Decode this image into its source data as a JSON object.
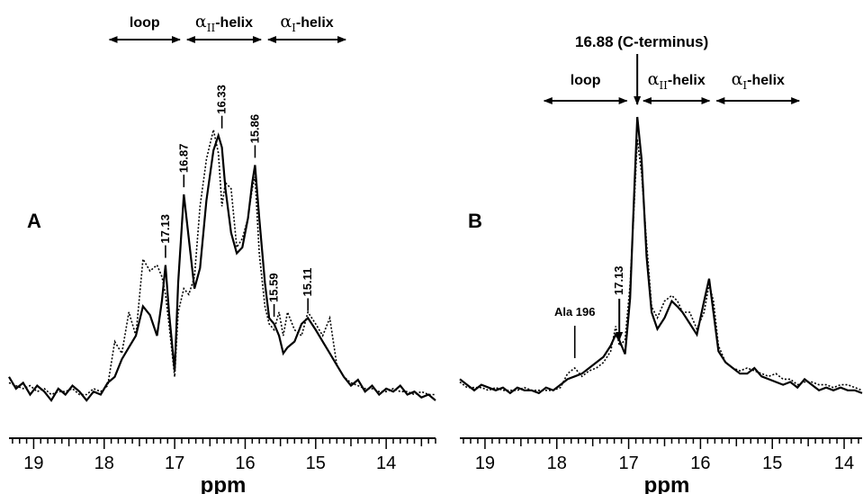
{
  "chart_data": [
    {
      "type": "line",
      "panel_label": "A",
      "xlabel": "ppm",
      "xlim": [
        19.35,
        13.3
      ],
      "x_ticks": [
        "19",
        "18",
        "17",
        "16",
        "15",
        "14"
      ],
      "x_tick_values": [
        19,
        18,
        17,
        16,
        15,
        14
      ],
      "regions": [
        {
          "label": "loop",
          "from": 17.95,
          "to": 16.9
        },
        {
          "label": "αII-helix",
          "greek": "α",
          "sub": "II",
          "suffix": "-helix",
          "from": 16.85,
          "to": 15.75
        },
        {
          "label": "αI-helix",
          "greek": "α",
          "sub": "I",
          "suffix": "-helix",
          "from": 15.7,
          "to": 14.55
        }
      ],
      "peak_labels": [
        "17.13",
        "16.87",
        "16.33",
        "15.86",
        "15.59",
        "15.11"
      ],
      "peak_positions": [
        17.13,
        16.87,
        16.33,
        15.86,
        15.59,
        15.11
      ],
      "series": [
        {
          "style": "solid",
          "x": [
            19.35,
            19.25,
            19.15,
            19.05,
            18.95,
            18.85,
            18.75,
            18.65,
            18.55,
            18.45,
            18.35,
            18.25,
            18.15,
            18.05,
            17.95,
            17.85,
            17.75,
            17.65,
            17.55,
            17.45,
            17.35,
            17.25,
            17.18,
            17.13,
            17.08,
            17.0,
            16.95,
            16.87,
            16.8,
            16.72,
            16.64,
            16.55,
            16.45,
            16.38,
            16.33,
            16.28,
            16.2,
            16.12,
            16.04,
            15.96,
            15.9,
            15.86,
            15.8,
            15.72,
            15.66,
            15.59,
            15.52,
            15.46,
            15.4,
            15.3,
            15.2,
            15.11,
            15.0,
            14.9,
            14.8,
            14.7,
            14.6,
            14.5,
            14.4,
            14.3,
            14.2,
            14.1,
            14.0,
            13.9,
            13.8,
            13.7,
            13.6,
            13.5,
            13.4,
            13.3
          ],
          "y": [
            0.08,
            0.04,
            0.06,
            0.02,
            0.05,
            0.03,
            0.0,
            0.04,
            0.02,
            0.05,
            0.03,
            0.0,
            0.03,
            0.02,
            0.06,
            0.08,
            0.14,
            0.18,
            0.22,
            0.32,
            0.29,
            0.22,
            0.34,
            0.46,
            0.3,
            0.1,
            0.4,
            0.7,
            0.55,
            0.38,
            0.45,
            0.68,
            0.85,
            0.9,
            0.86,
            0.72,
            0.57,
            0.5,
            0.52,
            0.62,
            0.74,
            0.8,
            0.62,
            0.4,
            0.28,
            0.26,
            0.22,
            0.16,
            0.18,
            0.2,
            0.26,
            0.28,
            0.24,
            0.2,
            0.16,
            0.12,
            0.08,
            0.05,
            0.07,
            0.03,
            0.05,
            0.02,
            0.04,
            0.03,
            0.05,
            0.02,
            0.03,
            0.01,
            0.02,
            0.0
          ]
        },
        {
          "style": "dotted",
          "x": [
            19.35,
            19.25,
            19.15,
            19.05,
            18.95,
            18.85,
            18.75,
            18.65,
            18.55,
            18.45,
            18.35,
            18.25,
            18.15,
            18.05,
            17.95,
            17.85,
            17.75,
            17.65,
            17.55,
            17.45,
            17.35,
            17.25,
            17.18,
            17.13,
            17.08,
            17.0,
            16.95,
            16.87,
            16.8,
            16.72,
            16.64,
            16.55,
            16.45,
            16.38,
            16.33,
            16.28,
            16.2,
            16.12,
            16.04,
            15.96,
            15.9,
            15.86,
            15.8,
            15.72,
            15.66,
            15.59,
            15.52,
            15.46,
            15.4,
            15.3,
            15.2,
            15.11,
            15.0,
            14.9,
            14.8,
            14.7,
            14.6,
            14.5,
            14.4,
            14.3,
            14.2,
            14.1,
            14.0,
            13.9,
            13.8,
            13.7,
            13.6,
            13.5,
            13.4,
            13.3
          ],
          "y": [
            0.06,
            0.05,
            0.04,
            0.05,
            0.03,
            0.04,
            0.02,
            0.03,
            0.03,
            0.04,
            0.02,
            0.02,
            0.04,
            0.03,
            0.05,
            0.2,
            0.16,
            0.3,
            0.22,
            0.48,
            0.44,
            0.46,
            0.42,
            0.36,
            0.26,
            0.08,
            0.3,
            0.38,
            0.36,
            0.42,
            0.66,
            0.82,
            0.92,
            0.84,
            0.66,
            0.74,
            0.72,
            0.52,
            0.55,
            0.62,
            0.72,
            0.76,
            0.5,
            0.32,
            0.26,
            0.24,
            0.3,
            0.22,
            0.3,
            0.24,
            0.22,
            0.3,
            0.26,
            0.22,
            0.28,
            0.12,
            0.08,
            0.06,
            0.05,
            0.04,
            0.04,
            0.03,
            0.03,
            0.04,
            0.03,
            0.03,
            0.02,
            0.03,
            0.02,
            0.02
          ]
        }
      ]
    },
    {
      "type": "line",
      "panel_label": "B",
      "xlabel": "ppm",
      "xlim": [
        19.35,
        13.75
      ],
      "x_ticks": [
        "19",
        "18",
        "17",
        "16",
        "15",
        "14"
      ],
      "x_tick_values": [
        19,
        18,
        17,
        16,
        15,
        14
      ],
      "regions": [
        {
          "label": "loop",
          "from": 18.2,
          "to": 17.0
        },
        {
          "label": "αII-helix",
          "greek": "α",
          "sub": "II",
          "suffix": "-helix",
          "from": 16.82,
          "to": 15.85
        },
        {
          "label": "αI-helix",
          "greek": "α",
          "sub": "I",
          "suffix": "-helix",
          "from": 15.8,
          "to": 14.6
        }
      ],
      "annotations": [
        {
          "text": "16.88 (C-terminus)",
          "x": 16.88,
          "kind": "arrow"
        },
        {
          "text": "17.13",
          "x": 17.13,
          "kind": "arrow"
        },
        {
          "text": "Ala 196",
          "x": 17.8,
          "kind": "line"
        }
      ],
      "series": [
        {
          "style": "solid",
          "x": [
            19.35,
            19.25,
            19.15,
            19.05,
            18.95,
            18.85,
            18.75,
            18.65,
            18.55,
            18.45,
            18.35,
            18.25,
            18.15,
            18.05,
            17.95,
            17.85,
            17.75,
            17.65,
            17.55,
            17.45,
            17.35,
            17.25,
            17.18,
            17.13,
            17.05,
            16.98,
            16.92,
            16.88,
            16.82,
            16.75,
            16.68,
            16.6,
            16.5,
            16.4,
            16.32,
            16.25,
            16.15,
            16.05,
            15.95,
            15.88,
            15.82,
            15.75,
            15.65,
            15.55,
            15.45,
            15.35,
            15.25,
            15.15,
            15.05,
            14.95,
            14.85,
            14.75,
            14.65,
            14.55,
            14.45,
            14.35,
            14.25,
            14.15,
            14.05,
            13.95,
            13.85,
            13.75
          ],
          "y": [
            0.06,
            0.04,
            0.02,
            0.04,
            0.03,
            0.02,
            0.03,
            0.01,
            0.03,
            0.02,
            0.02,
            0.01,
            0.03,
            0.02,
            0.04,
            0.06,
            0.07,
            0.08,
            0.1,
            0.12,
            0.14,
            0.18,
            0.22,
            0.2,
            0.15,
            0.35,
            0.75,
            1.0,
            0.85,
            0.5,
            0.3,
            0.24,
            0.28,
            0.34,
            0.32,
            0.3,
            0.26,
            0.22,
            0.34,
            0.42,
            0.3,
            0.16,
            0.12,
            0.1,
            0.08,
            0.08,
            0.1,
            0.07,
            0.06,
            0.05,
            0.04,
            0.05,
            0.03,
            0.06,
            0.04,
            0.02,
            0.03,
            0.02,
            0.03,
            0.02,
            0.02,
            0.01
          ]
        },
        {
          "style": "dotted",
          "x": [
            19.35,
            19.25,
            19.15,
            19.05,
            18.95,
            18.85,
            18.75,
            18.65,
            18.55,
            18.45,
            18.35,
            18.25,
            18.15,
            18.05,
            17.95,
            17.85,
            17.75,
            17.65,
            17.55,
            17.45,
            17.35,
            17.25,
            17.18,
            17.13,
            17.05,
            16.98,
            16.92,
            16.88,
            16.82,
            16.75,
            16.68,
            16.6,
            16.5,
            16.4,
            16.32,
            16.25,
            16.15,
            16.05,
            15.95,
            15.88,
            15.82,
            15.75,
            15.65,
            15.55,
            15.45,
            15.35,
            15.25,
            15.15,
            15.05,
            14.95,
            14.85,
            14.75,
            14.65,
            14.55,
            14.45,
            14.35,
            14.25,
            14.15,
            14.05,
            13.95,
            13.85,
            13.75
          ],
          "y": [
            0.05,
            0.03,
            0.03,
            0.03,
            0.02,
            0.03,
            0.02,
            0.02,
            0.02,
            0.03,
            0.02,
            0.02,
            0.02,
            0.02,
            0.03,
            0.08,
            0.1,
            0.07,
            0.09,
            0.1,
            0.12,
            0.16,
            0.25,
            0.18,
            0.2,
            0.4,
            0.7,
            0.92,
            0.8,
            0.55,
            0.32,
            0.28,
            0.34,
            0.36,
            0.34,
            0.3,
            0.3,
            0.24,
            0.3,
            0.4,
            0.34,
            0.18,
            0.12,
            0.1,
            0.09,
            0.1,
            0.09,
            0.08,
            0.07,
            0.08,
            0.06,
            0.06,
            0.04,
            0.05,
            0.05,
            0.04,
            0.04,
            0.03,
            0.04,
            0.04,
            0.03,
            0.02
          ]
        }
      ]
    }
  ]
}
